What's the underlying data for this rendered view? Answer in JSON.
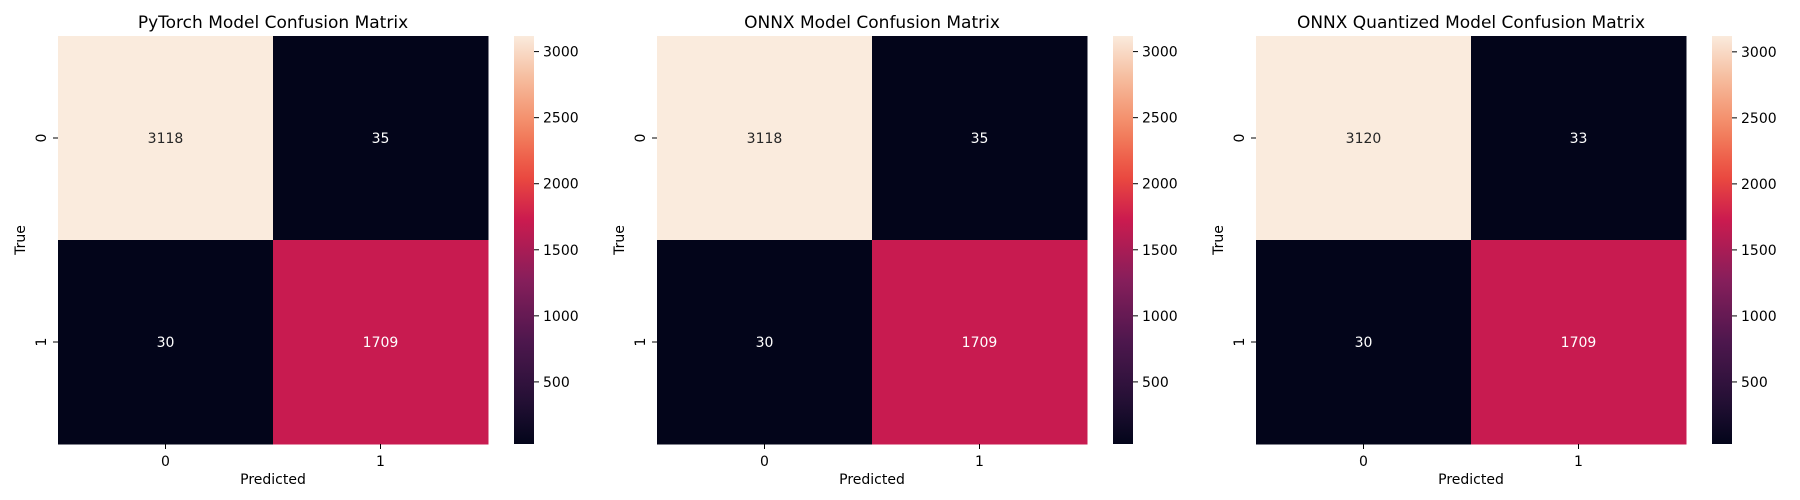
{
  "chart_data": [
    {
      "type": "heatmap",
      "title": "PyTorch Model Confusion Matrix",
      "xlabel": "Predicted",
      "ylabel": "True",
      "x_categories": [
        "0",
        "1"
      ],
      "y_categories": [
        "0",
        "1"
      ],
      "values": [
        [
          3118,
          35
        ],
        [
          30,
          1709
        ]
      ],
      "colorbar": {
        "min": 30,
        "max": 3118,
        "ticks": [
          500,
          1000,
          1500,
          2000,
          2500,
          3000
        ]
      },
      "colormap": "rocket"
    },
    {
      "type": "heatmap",
      "title": "ONNX Model Confusion Matrix",
      "xlabel": "Predicted",
      "ylabel": "True",
      "x_categories": [
        "0",
        "1"
      ],
      "y_categories": [
        "0",
        "1"
      ],
      "values": [
        [
          3118,
          35
        ],
        [
          30,
          1709
        ]
      ],
      "colorbar": {
        "min": 30,
        "max": 3118,
        "ticks": [
          500,
          1000,
          1500,
          2000,
          2500,
          3000
        ]
      },
      "colormap": "rocket"
    },
    {
      "type": "heatmap",
      "title": "ONNX Quantized Model Confusion Matrix",
      "xlabel": "Predicted",
      "ylabel": "True",
      "x_categories": [
        "0",
        "1"
      ],
      "y_categories": [
        "0",
        "1"
      ],
      "values": [
        [
          3120,
          33
        ],
        [
          30,
          1709
        ]
      ],
      "colorbar": {
        "min": 30,
        "max": 3120,
        "ticks": [
          500,
          1000,
          1500,
          2000,
          2500,
          3000
        ]
      },
      "colormap": "rocket"
    }
  ]
}
